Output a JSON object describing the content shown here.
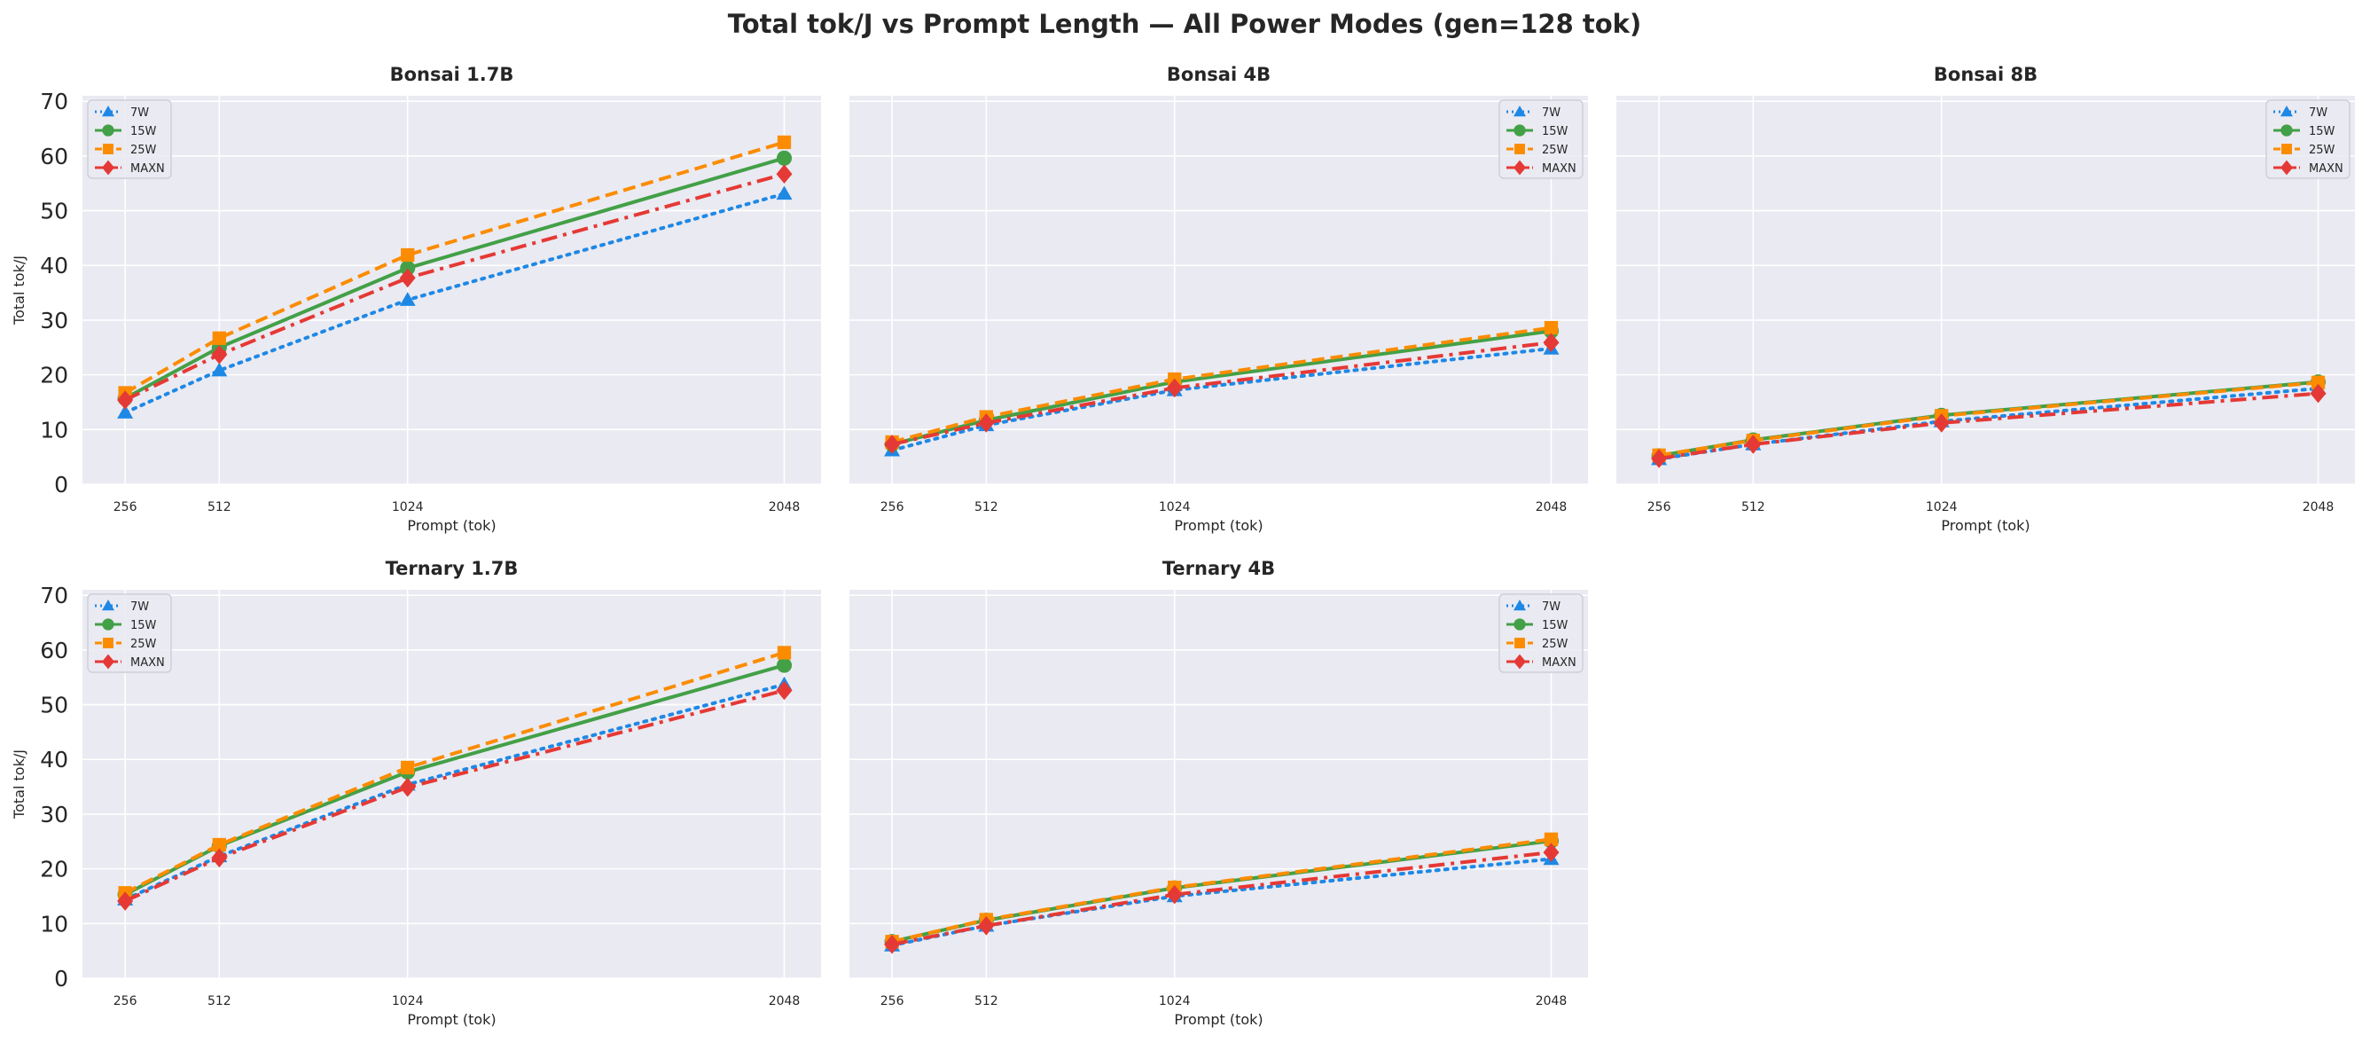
{
  "figure_title": "Total tok/J vs Prompt Length — All Power Modes (gen=128 tok)",
  "colors": {
    "7W": "#1E88E5",
    "15W": "#43A047",
    "25W": "#FB8C00",
    "MAXN": "#E53935",
    "panel_bg": "#EAEAF2",
    "grid": "#FFFFFF"
  },
  "chart_data": [
    {
      "type": "line",
      "title": "Bonsai 1.7B",
      "xlabel": "Prompt (tok)",
      "ylabel": "Total tok/J",
      "x": [
        256,
        512,
        1024,
        2048
      ],
      "xticks": [
        "256",
        "512",
        "1024",
        "2048"
      ],
      "yticks": [
        "0",
        "10",
        "20",
        "30",
        "40",
        "50",
        "60",
        "70"
      ],
      "ylim": [
        0,
        71
      ],
      "grid": true,
      "legend": "top-left",
      "series": [
        {
          "name": "7W",
          "marker": "triangle",
          "line": "dotted",
          "values": [
            13.1,
            20.8,
            33.7,
            53.1
          ]
        },
        {
          "name": "15W",
          "marker": "circle",
          "line": "solid",
          "values": [
            15.7,
            25.0,
            39.5,
            59.6
          ]
        },
        {
          "name": "25W",
          "marker": "square",
          "line": "dashed",
          "values": [
            16.7,
            26.7,
            41.9,
            62.5
          ]
        },
        {
          "name": "MAXN",
          "marker": "diamond",
          "line": "dashdot",
          "values": [
            15.4,
            23.7,
            37.7,
            56.7
          ]
        }
      ]
    },
    {
      "type": "line",
      "title": "Bonsai 4B",
      "xlabel": "Prompt (tok)",
      "ylabel": "",
      "x": [
        256,
        512,
        1024,
        2048
      ],
      "xticks": [
        "256",
        "512",
        "1024",
        "2048"
      ],
      "yticks": [],
      "ylim": [
        0,
        71
      ],
      "grid": true,
      "legend": "top-right",
      "series": [
        {
          "name": "7W",
          "marker": "triangle",
          "line": "dotted",
          "values": [
            6.2,
            10.8,
            17.2,
            24.8
          ]
        },
        {
          "name": "15W",
          "marker": "circle",
          "line": "solid",
          "values": [
            7.3,
            11.7,
            18.7,
            28.0
          ]
        },
        {
          "name": "25W",
          "marker": "square",
          "line": "dashed",
          "values": [
            7.7,
            12.3,
            19.2,
            28.6
          ]
        },
        {
          "name": "MAXN",
          "marker": "diamond",
          "line": "dashdot",
          "values": [
            7.3,
            11.2,
            17.6,
            25.9
          ]
        }
      ]
    },
    {
      "type": "line",
      "title": "Bonsai 8B",
      "xlabel": "Prompt (tok)",
      "ylabel": "",
      "x": [
        256,
        512,
        1024,
        2048
      ],
      "xticks": [
        "256",
        "512",
        "1024",
        "2048"
      ],
      "yticks": [],
      "ylim": [
        0,
        71
      ],
      "grid": true,
      "legend": "top-right",
      "series": [
        {
          "name": "7W",
          "marker": "triangle",
          "line": "dotted",
          "values": [
            4.6,
            7.3,
            11.5,
            17.5
          ]
        },
        {
          "name": "15W",
          "marker": "circle",
          "line": "solid",
          "values": [
            5.2,
            8.1,
            12.6,
            18.7
          ]
        },
        {
          "name": "25W",
          "marker": "square",
          "line": "dashed",
          "values": [
            5.3,
            8.0,
            12.5,
            18.6
          ]
        },
        {
          "name": "MAXN",
          "marker": "diamond",
          "line": "dashdot",
          "values": [
            4.7,
            7.3,
            11.2,
            16.6
          ]
        }
      ]
    },
    {
      "type": "line",
      "title": "Ternary 1.7B",
      "xlabel": "Prompt (tok)",
      "ylabel": "Total tok/J",
      "x": [
        256,
        512,
        1024,
        2048
      ],
      "xticks": [
        "256",
        "512",
        "1024",
        "2048"
      ],
      "yticks": [
        "0",
        "10",
        "20",
        "30",
        "40",
        "50",
        "60",
        "70"
      ],
      "ylim": [
        0,
        71
      ],
      "grid": true,
      "legend": "top-left",
      "series": [
        {
          "name": "7W",
          "marker": "triangle",
          "line": "dotted",
          "values": [
            14.4,
            22.3,
            35.4,
            53.7
          ]
        },
        {
          "name": "15W",
          "marker": "circle",
          "line": "solid",
          "values": [
            15.3,
            24.2,
            37.7,
            57.2
          ]
        },
        {
          "name": "25W",
          "marker": "square",
          "line": "dashed",
          "values": [
            15.6,
            24.4,
            38.5,
            59.5
          ]
        },
        {
          "name": "MAXN",
          "marker": "diamond",
          "line": "dashdot",
          "values": [
            14.1,
            22.0,
            34.9,
            52.6
          ]
        }
      ]
    },
    {
      "type": "line",
      "title": "Ternary 4B",
      "xlabel": "Prompt (tok)",
      "ylabel": "",
      "x": [
        256,
        512,
        1024,
        2048
      ],
      "xticks": [
        "256",
        "512",
        "1024",
        "2048"
      ],
      "yticks": [],
      "ylim": [
        0,
        71
      ],
      "grid": true,
      "legend": "top-right",
      "series": [
        {
          "name": "7W",
          "marker": "triangle",
          "line": "dotted",
          "values": [
            6.0,
            9.6,
            15.0,
            21.8
          ]
        },
        {
          "name": "15W",
          "marker": "circle",
          "line": "solid",
          "values": [
            6.7,
            10.6,
            16.5,
            25.1
          ]
        },
        {
          "name": "25W",
          "marker": "square",
          "line": "dashed",
          "values": [
            6.7,
            10.7,
            16.6,
            25.4
          ]
        },
        {
          "name": "MAXN",
          "marker": "diamond",
          "line": "dashdot",
          "values": [
            6.2,
            9.6,
            15.3,
            23.0
          ]
        }
      ]
    }
  ]
}
